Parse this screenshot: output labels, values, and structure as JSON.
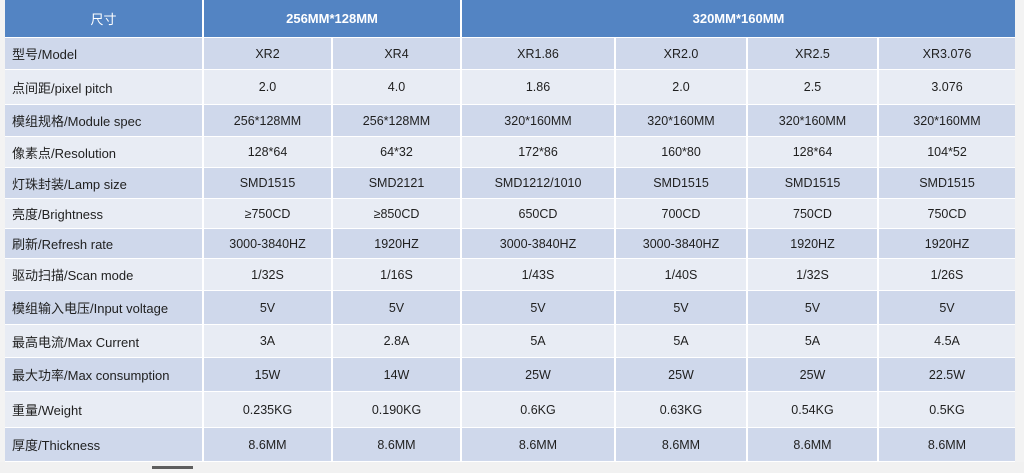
{
  "header": {
    "size_label": "尺寸",
    "group_256": "256MM*128MM",
    "group_320": "320MM*160MM"
  },
  "rows": [
    {
      "label": "型号/Model",
      "values": [
        "XR2",
        "XR4",
        "XR1.86",
        "XR2.0",
        "XR2.5",
        "XR3.076"
      ]
    },
    {
      "label": "点间距/pixel pitch",
      "values": [
        "2.0",
        "4.0",
        "1.86",
        "2.0",
        "2.5",
        "3.076"
      ]
    },
    {
      "label": "模组规格/Module spec",
      "values": [
        "256*128MM",
        "256*128MM",
        "320*160MM",
        "320*160MM",
        "320*160MM",
        "320*160MM"
      ]
    },
    {
      "label": "像素点/Resolution",
      "values": [
        "128*64",
        "64*32",
        "172*86",
        "160*80",
        "128*64",
        "104*52"
      ]
    },
    {
      "label": "灯珠封装/Lamp size",
      "values": [
        "SMD1515",
        "SMD2121",
        "SMD1212/1010",
        "SMD1515",
        "SMD1515",
        "SMD1515"
      ]
    },
    {
      "label": "亮度/Brightness",
      "values": [
        "≥750CD",
        "≥850CD",
        "650CD",
        "700CD",
        "750CD",
        "750CD"
      ]
    },
    {
      "label": "刷新/Refresh rate",
      "values": [
        "3000-3840HZ",
        "1920HZ",
        "3000-3840HZ",
        "3000-3840HZ",
        "1920HZ",
        "1920HZ"
      ]
    },
    {
      "label": "驱动扫描/Scan mode",
      "values": [
        "1/32S",
        "1/16S",
        "1/43S",
        "1/40S",
        "1/32S",
        "1/26S"
      ]
    },
    {
      "label": "模组输入电压/Input voltage",
      "values": [
        "5V",
        "5V",
        "5V",
        "5V",
        "5V",
        "5V"
      ]
    },
    {
      "label": "最高电流/Max Current",
      "values": [
        "3A",
        "2.8A",
        "5A",
        "5A",
        "5A",
        "4.5A"
      ]
    },
    {
      "label": "最大功率/Max consumption",
      "values": [
        "15W",
        "14W",
        "25W",
        "25W",
        "25W",
        "22.5W"
      ]
    },
    {
      "label": "重量/Weight",
      "values": [
        "0.235KG",
        "0.190KG",
        "0.6KG",
        "0.63KG",
        "0.54KG",
        "0.5KG"
      ]
    },
    {
      "label": "厚度/Thickness",
      "values": [
        "8.6MM",
        "8.6MM",
        "8.6MM",
        "8.6MM",
        "8.6MM",
        "8.6MM"
      ]
    }
  ],
  "colors": {
    "header_bg": "#5384c3",
    "header_text": "#ffffff",
    "row_dark": "#cfd8eb",
    "row_light": "#e8ecf4",
    "cell_text": "#1f1f1f",
    "grid_line": "#ffffff",
    "page_bg": "#f3f3f3"
  }
}
